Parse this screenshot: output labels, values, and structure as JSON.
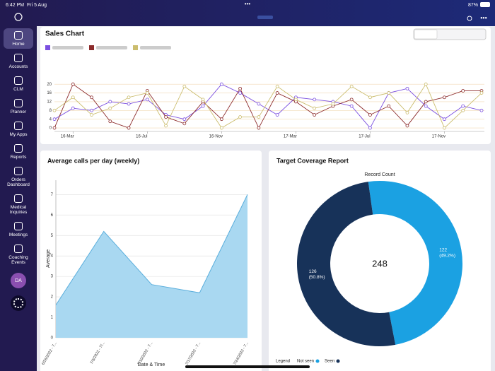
{
  "status_bar": {
    "time": "6:42 PM",
    "date": "Fri 5 Aug",
    "battery": "87%"
  },
  "sidebar": {
    "items": [
      "Home",
      "Accounts",
      "CLM",
      "Planner",
      "My Apps",
      "Reports",
      "Orders Dashboard",
      "Medical Inquiries",
      "Meetings",
      "Coaching Events"
    ],
    "avatar": "DA"
  },
  "chart_data": [
    {
      "type": "line",
      "title": "Sales Chart",
      "categories": [
        null,
        "16-Mar",
        null,
        null,
        null,
        "16-Jul",
        null,
        null,
        null,
        "16-Nov",
        null,
        null,
        null,
        "17-Mar",
        null,
        null,
        null,
        "17-Jul",
        null,
        null,
        null,
        "17-Nov",
        null,
        null
      ],
      "series": [
        {
          "color": "#7b4fe0",
          "values": [
            4,
            9,
            8,
            12,
            11,
            13,
            6,
            4,
            10,
            20,
            16,
            11,
            6,
            14,
            13,
            12,
            10,
            0,
            16,
            18,
            10,
            4,
            10,
            8
          ]
        },
        {
          "color": "#8c2b2b",
          "values": [
            0,
            20,
            14,
            3,
            0,
            17,
            5,
            2,
            12,
            4,
            18,
            0,
            16,
            12,
            6,
            10,
            13,
            6,
            10,
            1,
            12,
            14,
            17,
            17
          ]
        },
        {
          "color": "#cbbd6e",
          "values": [
            8,
            14,
            6,
            9,
            14,
            16,
            1,
            19,
            13,
            0,
            5,
            5,
            19,
            13,
            9,
            11,
            19,
            14,
            16,
            7,
            20,
            0,
            8,
            16
          ]
        }
      ],
      "ylim": [
        -1.6,
        22
      ],
      "yticks": [
        0,
        4,
        8,
        12,
        16,
        20
      ],
      "grid": true
    },
    {
      "type": "area",
      "title": "Average calls per day (weekly)",
      "x_label": "Date & Time",
      "y_label": "Average",
      "categories": [
        "6/26/2022 - 7...",
        "7/3/2022 - 7/...",
        "7/10/2022 - 7...",
        "7/17/2022 - 7...",
        "7/24/2022 - 7..."
      ],
      "values": [
        1.6,
        5.2,
        2.6,
        2.2,
        7
      ],
      "color": "#a9d8f1",
      "line_color": "#5aaedc",
      "ylim": [
        0,
        7.7
      ],
      "yticks": [
        0,
        1,
        2,
        3,
        4,
        5,
        6,
        7
      ],
      "grid": true
    },
    {
      "type": "donut",
      "title": "Target Coverage Report",
      "subtitle": "Record Count",
      "total_label": "248",
      "categories": [
        "Not seen",
        "Seen"
      ],
      "values": [
        122,
        126
      ],
      "percent_labels": [
        "(49.2%)",
        "(50.8%)"
      ],
      "colors": [
        "#1ba1e2",
        "#173259"
      ],
      "legend_title": "Legend"
    }
  ]
}
